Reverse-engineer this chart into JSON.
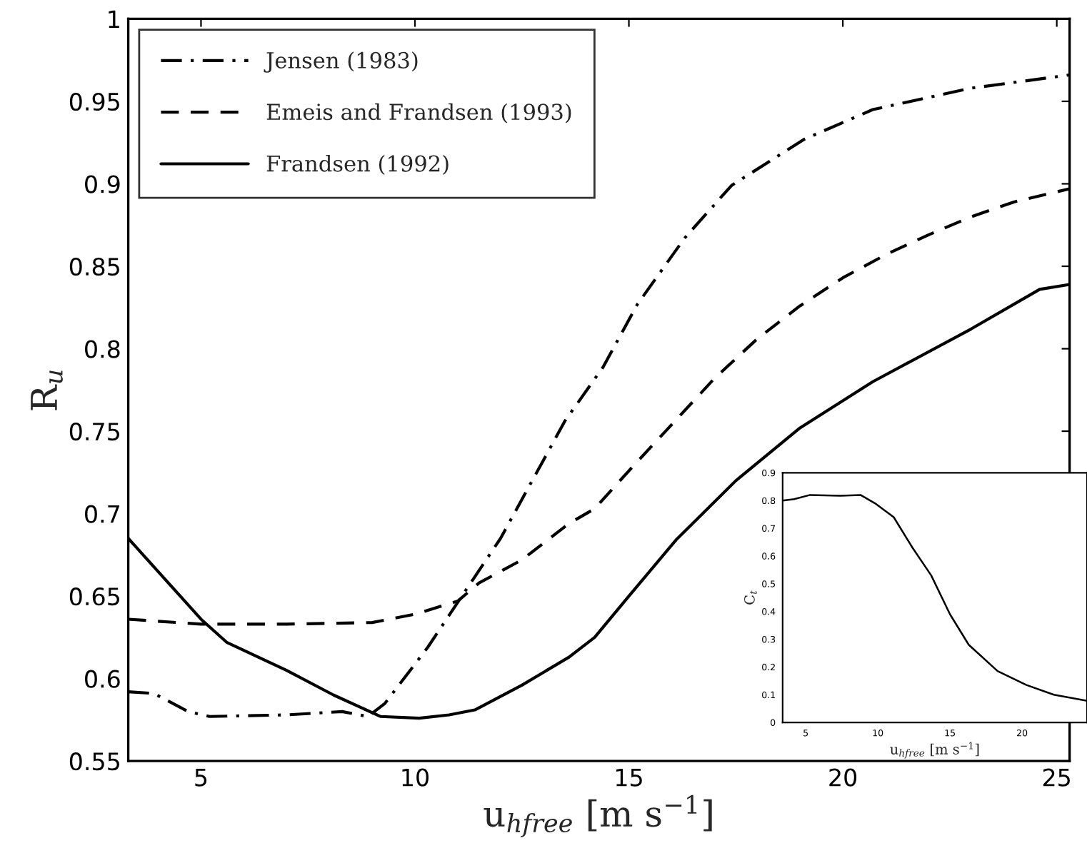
{
  "chart_data": [
    {
      "type": "line",
      "xlabel": "u$_{hfree}$ [m s$^{−1}$]",
      "ylabel": "R$_{u}$",
      "xlim": [
        3.3,
        25.3
      ],
      "ylim": [
        0.55,
        1
      ],
      "xticks": [
        5,
        10,
        15,
        20,
        25
      ],
      "yticks": [
        0.55,
        0.6,
        0.65,
        0.7,
        0.75,
        0.8,
        0.85,
        0.9,
        0.95,
        1
      ],
      "legend": "top left",
      "grid": false,
      "series": [
        {
          "name": "Jensen (1983)",
          "color": "#000000",
          "line_style": "dashdot",
          "x": [
            3.3,
            3.9,
            4.7,
            5.2,
            7.0,
            8.3,
            8.9,
            9.3,
            10.3,
            11.2,
            12.0,
            13.1,
            13.5,
            14.4,
            15.2,
            16.3,
            17.4,
            19.1,
            20.7,
            23.0,
            25.3
          ],
          "values": [
            0.592,
            0.591,
            0.58,
            0.577,
            0.578,
            0.58,
            0.577,
            0.585,
            0.619,
            0.654,
            0.685,
            0.737,
            0.756,
            0.789,
            0.827,
            0.867,
            0.899,
            0.927,
            0.945,
            0.958,
            0.966
          ]
        },
        {
          "name": "Emeis and Frandsen (1993)",
          "color": "#000000",
          "line_style": "dashed",
          "x": [
            3.3,
            5,
            7,
            9,
            10,
            11,
            11.5,
            12.5,
            13.6,
            14.2,
            15,
            16,
            17,
            18,
            19,
            20,
            21,
            22,
            23,
            24,
            25.3
          ],
          "values": [
            0.636,
            0.633,
            0.633,
            0.634,
            0.639,
            0.647,
            0.658,
            0.672,
            0.694,
            0.703,
            0.726,
            0.754,
            0.782,
            0.806,
            0.826,
            0.843,
            0.857,
            0.869,
            0.88,
            0.889,
            0.897
          ]
        },
        {
          "name": "Frandsen (1992)",
          "color": "#000000",
          "line_style": "solid",
          "x": [
            3.3,
            5.0,
            5.6,
            7.0,
            8.1,
            9.2,
            10.1,
            10.8,
            11.4,
            12.5,
            13.6,
            14.2,
            15.0,
            16.1,
            17.5,
            19.0,
            20.7,
            23.0,
            24.6,
            25.3
          ],
          "values": [
            0.685,
            0.636,
            0.622,
            0.605,
            0.59,
            0.577,
            0.576,
            0.578,
            0.581,
            0.596,
            0.613,
            0.625,
            0.65,
            0.684,
            0.72,
            0.752,
            0.78,
            0.812,
            0.836,
            0.839
          ]
        }
      ]
    },
    {
      "type": "line",
      "xlabel": "u$_{hfree}$ [m s$^{−1}$]",
      "ylabel": "C$_{t}$",
      "xlim": [
        3.4,
        24.5
      ],
      "ylim": [
        0,
        0.9
      ],
      "xticks": [
        5,
        10,
        15,
        20
      ],
      "yticks": [
        0,
        0.1,
        0.2,
        0.3,
        0.4,
        0.5,
        0.6,
        0.7,
        0.8,
        0.9
      ],
      "grid": false,
      "series": [
        {
          "color": "#000000",
          "line_style": "solid",
          "x": [
            3.4,
            4.2,
            5.3,
            7.4,
            8.8,
            9.8,
            11.1,
            12.4,
            13.7,
            15.0,
            16.3,
            18.3,
            20.3,
            22.2,
            24.5
          ],
          "values": [
            0.8,
            0.805,
            0.82,
            0.817,
            0.82,
            0.79,
            0.74,
            0.63,
            0.53,
            0.39,
            0.28,
            0.185,
            0.135,
            0.1,
            0.078
          ]
        }
      ]
    }
  ]
}
